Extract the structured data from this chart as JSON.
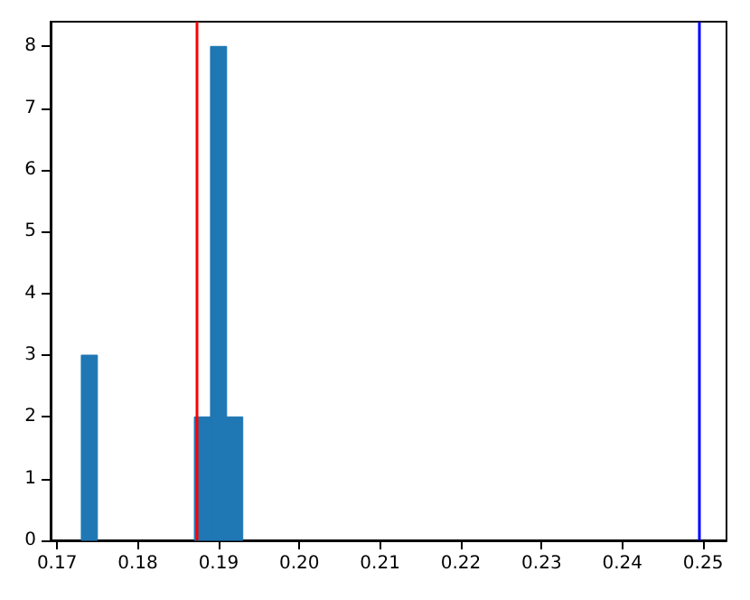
{
  "chart_data": {
    "type": "histogram",
    "bins": [
      0.173,
      0.175,
      0.177,
      0.179,
      0.181,
      0.183,
      0.185,
      0.187,
      0.189,
      0.191,
      0.193
    ],
    "values": [
      3,
      0,
      0,
      0,
      0,
      0,
      0,
      2,
      8,
      2
    ],
    "color": "#1f77b4",
    "xlim": [
      0.1692,
      0.2529
    ],
    "xticks": [
      0.17,
      0.18,
      0.19,
      {
        "value": 0.2,
        "label": "0.20"
      },
      0.21,
      0.22,
      0.23,
      0.24,
      0.25
    ],
    "ylim": [
      0,
      8.4
    ],
    "yticks": [
      0,
      1,
      2,
      3,
      4,
      5,
      6,
      7,
      8
    ],
    "ref_lines": [
      {
        "axis": "x",
        "value": 0.1873,
        "color": "#ff0000"
      },
      {
        "axis": "x",
        "value": 0.2495,
        "color": "#0000ff"
      }
    ],
    "grid": false
  }
}
